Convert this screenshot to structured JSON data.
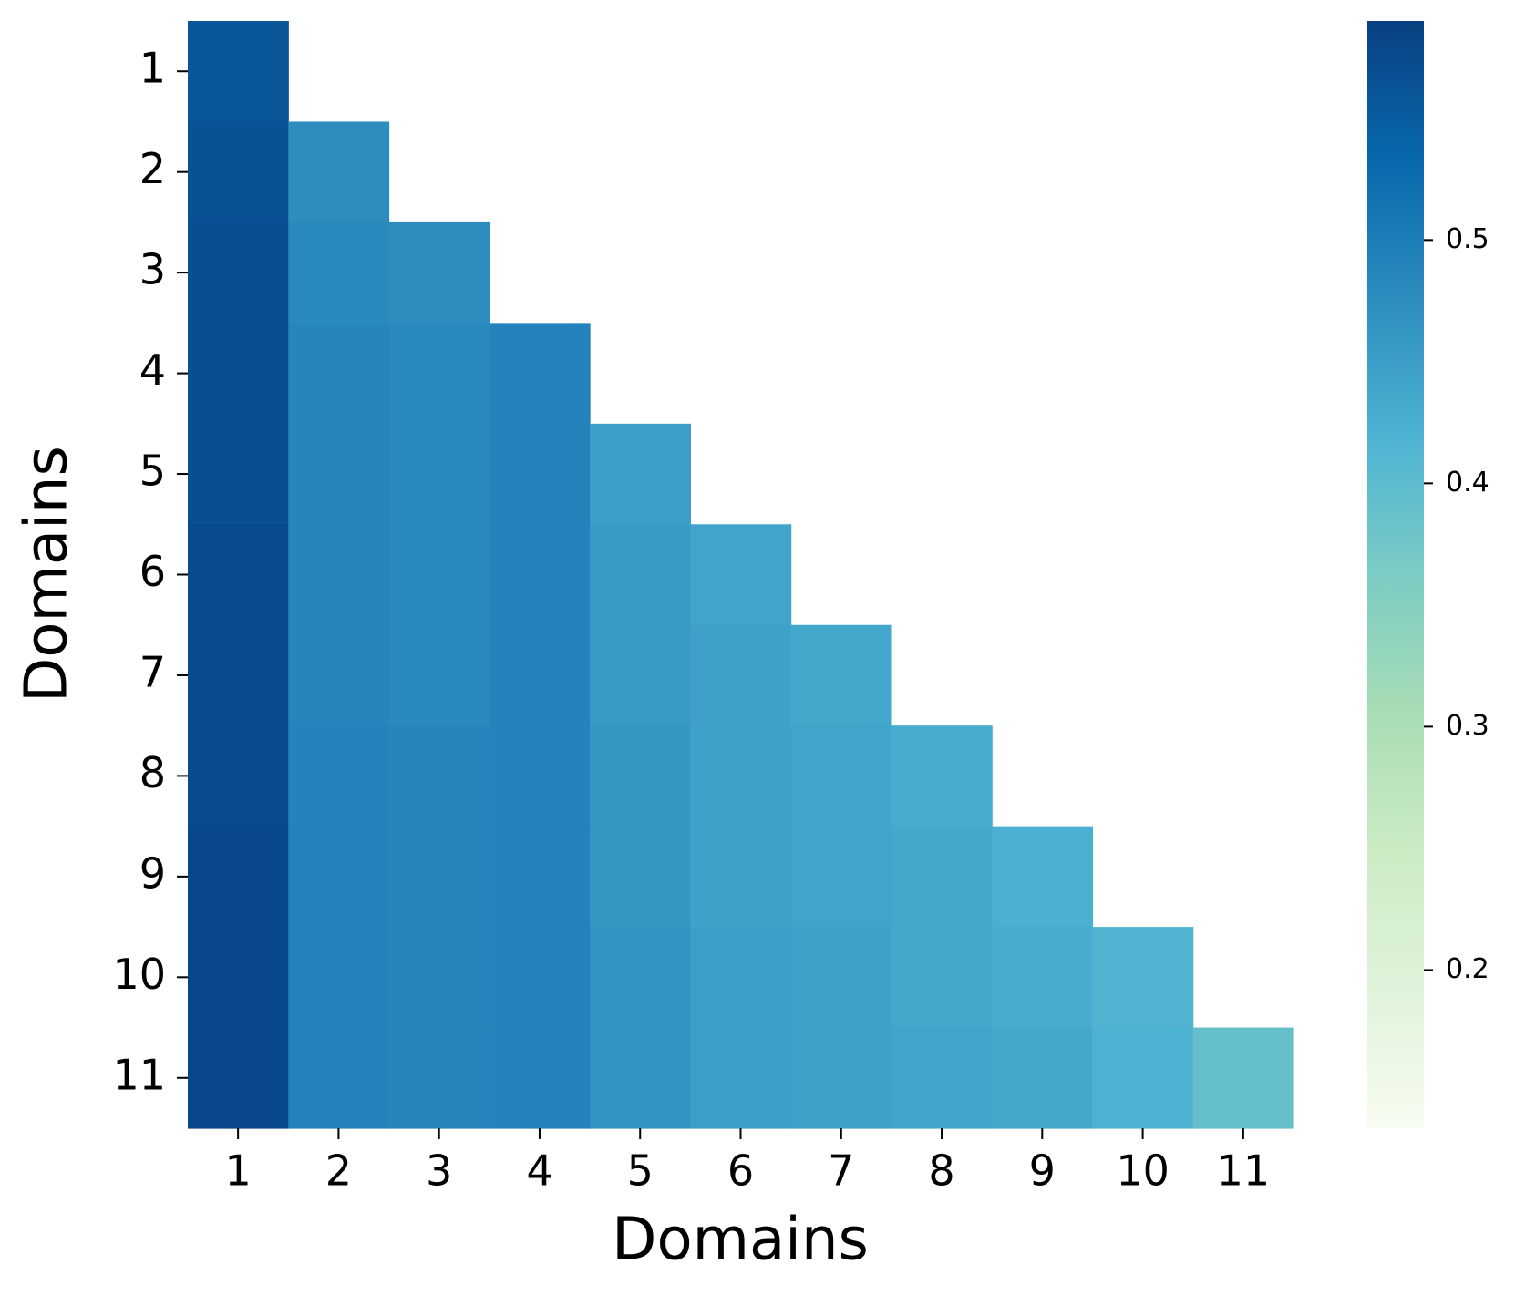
{
  "chart_data": {
    "type": "heatmap",
    "x_label": "Domains",
    "y_label": "Domains",
    "x_categories": [
      "1",
      "2",
      "3",
      "4",
      "5",
      "6",
      "7",
      "8",
      "9",
      "10",
      "11"
    ],
    "y_categories": [
      "1",
      "2",
      "3",
      "4",
      "5",
      "6",
      "7",
      "8",
      "9",
      "10",
      "11"
    ],
    "values": [
      [
        0.56,
        null,
        null,
        null,
        null,
        null,
        null,
        null,
        null,
        null,
        null
      ],
      [
        0.565,
        0.475,
        null,
        null,
        null,
        null,
        null,
        null,
        null,
        null,
        null
      ],
      [
        0.57,
        0.48,
        0.475,
        null,
        null,
        null,
        null,
        null,
        null,
        null,
        null
      ],
      [
        0.57,
        0.485,
        0.48,
        0.49,
        null,
        null,
        null,
        null,
        null,
        null,
        null
      ],
      [
        0.57,
        0.485,
        0.48,
        0.49,
        0.45,
        null,
        null,
        null,
        null,
        null,
        null
      ],
      [
        0.575,
        0.485,
        0.48,
        0.49,
        0.455,
        0.44,
        null,
        null,
        null,
        null,
        null
      ],
      [
        0.575,
        0.485,
        0.48,
        0.49,
        0.455,
        0.445,
        0.435,
        null,
        null,
        null,
        null
      ],
      [
        0.575,
        0.49,
        0.485,
        0.49,
        0.46,
        0.445,
        0.44,
        0.43,
        null,
        null,
        null
      ],
      [
        0.58,
        0.49,
        0.485,
        0.49,
        0.46,
        0.445,
        0.44,
        0.435,
        0.425,
        null,
        null
      ],
      [
        0.58,
        0.49,
        0.485,
        0.49,
        0.465,
        0.45,
        0.445,
        0.435,
        0.43,
        0.415,
        null
      ],
      [
        0.58,
        0.49,
        0.485,
        0.49,
        0.465,
        0.45,
        0.445,
        0.44,
        0.435,
        0.42,
        0.39
      ]
    ],
    "colormap": [
      "#f7fcf0",
      "#e0f3db",
      "#ccebc5",
      "#a8ddb5",
      "#7bccc4",
      "#4eb3d3",
      "#2b8cbe",
      "#0868ac",
      "#084081"
    ],
    "clim": [
      0.135,
      0.59
    ],
    "cticks": [
      0.2,
      0.3,
      0.4,
      0.5
    ]
  }
}
